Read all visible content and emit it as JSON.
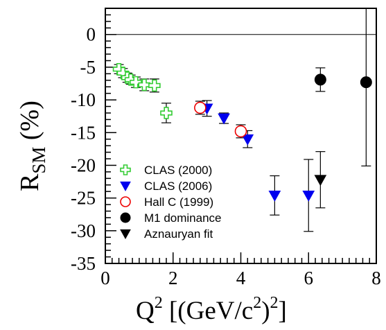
{
  "chart_data": {
    "type": "scatter",
    "xlabel": {
      "main": "Q",
      "sup1": "2",
      "rest1": " [(GeV/c",
      "sup2": "2",
      "rest2": ")",
      "sup3": "2",
      "rest3": "]"
    },
    "ylabel": {
      "main": "R",
      "sub": "SM",
      "rest": " (%)"
    },
    "xlim": [
      0,
      8
    ],
    "ylim": [
      -35,
      4
    ],
    "x_ticks": [
      0,
      2,
      4,
      6,
      8
    ],
    "y_ticks": [
      0,
      -5,
      -10,
      -15,
      -20,
      -25,
      -30,
      -35
    ],
    "zero_line": true,
    "legend_position": "bottom-left",
    "series": [
      {
        "name": "CLAS (2000)",
        "marker": "open-cross",
        "color": "#33cc33",
        "points": [
          {
            "x": 0.4,
            "y": -5.3,
            "err": 0.7
          },
          {
            "x": 0.52,
            "y": -5.9,
            "err": 0.7
          },
          {
            "x": 0.65,
            "y": -6.6,
            "err": 0.7
          },
          {
            "x": 0.75,
            "y": -6.9,
            "err": 0.7
          },
          {
            "x": 0.9,
            "y": -7.3,
            "err": 0.8
          },
          {
            "x": 1.15,
            "y": -7.7,
            "err": 0.9
          },
          {
            "x": 1.45,
            "y": -7.8,
            "err": 1.0
          },
          {
            "x": 1.8,
            "y": -12.0,
            "err": 1.5
          }
        ]
      },
      {
        "name": "CLAS (2006)",
        "marker": "filled-triangle-down",
        "color": "#0000ee",
        "points": [
          {
            "x": 3.0,
            "y": -11.3,
            "err": 1.2
          },
          {
            "x": 3.5,
            "y": -12.8,
            "err": 0.8
          },
          {
            "x": 4.2,
            "y": -16.0,
            "err": 1.3
          },
          {
            "x": 5.0,
            "y": -24.6,
            "err": 3.0
          },
          {
            "x": 6.0,
            "y": -24.6,
            "err": 5.5
          }
        ]
      },
      {
        "name": "Hall C (1999)",
        "marker": "open-circle",
        "color": "#ee0000",
        "points": [
          {
            "x": 2.8,
            "y": -11.2,
            "err": 1.0
          },
          {
            "x": 4.0,
            "y": -14.8,
            "err": 1.0
          }
        ]
      },
      {
        "name": "M1 dominance",
        "marker": "filled-circle",
        "color": "#000000",
        "points": [
          {
            "x": 6.35,
            "y": -6.9,
            "err": 1.8
          },
          {
            "x": 7.7,
            "y": -7.3,
            "err": 12.8,
            "err_up": 11.5
          }
        ]
      },
      {
        "name": "Aznauryan fit",
        "marker": "filled-triangle-down",
        "color": "#000000",
        "points": [
          {
            "x": 6.35,
            "y": -22.2,
            "err": 4.3
          }
        ]
      }
    ]
  }
}
